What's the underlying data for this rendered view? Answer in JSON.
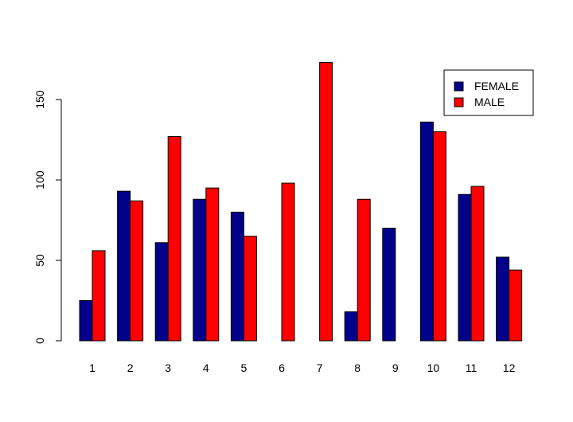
{
  "chart_data": {
    "type": "bar",
    "categories": [
      "1",
      "2",
      "3",
      "4",
      "5",
      "6",
      "7",
      "8",
      "9",
      "10",
      "11",
      "12"
    ],
    "series": [
      {
        "name": "FEMALE",
        "color": "#00008B",
        "values": [
          25,
          93,
          61,
          88,
          80,
          0,
          0,
          18,
          70,
          136,
          91,
          52
        ]
      },
      {
        "name": "MALE",
        "color": "#FF0000",
        "values": [
          56,
          87,
          127,
          95,
          65,
          98,
          173,
          88,
          0,
          130,
          96,
          44
        ]
      }
    ],
    "yticks": [
      0,
      50,
      100,
      150
    ],
    "ylim": [
      0,
      173
    ],
    "legend_position": "top-right",
    "grid": false
  }
}
